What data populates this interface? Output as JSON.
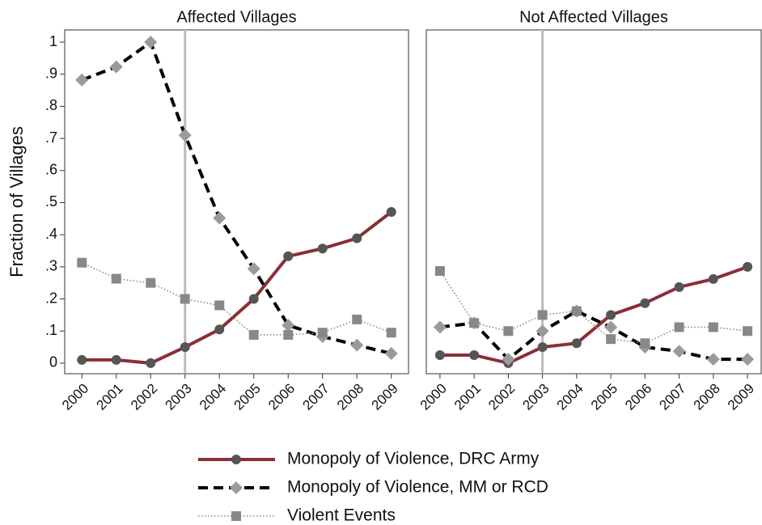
{
  "chart_data": [
    {
      "type": "line",
      "title": "Affected Villages",
      "ylabel": "Fraction of Villages",
      "x": [
        2000,
        2001,
        2002,
        2003,
        2004,
        2005,
        2006,
        2007,
        2008,
        2009
      ],
      "xlim": [
        1999.5,
        2009.5
      ],
      "xticks": [
        2000,
        2001,
        2002,
        2003,
        2004,
        2005,
        2006,
        2007,
        2008,
        2009
      ],
      "ylim": [
        -0.033,
        1.038
      ],
      "yticks": [
        0,
        {
          "value": 0.1,
          "label": ".1"
        },
        {
          "value": 0.2,
          "label": ".2"
        },
        {
          "value": 0.3,
          "label": ".3"
        },
        {
          "value": 0.4,
          "label": ".4"
        },
        {
          "value": 0.5,
          "label": ".5"
        },
        {
          "value": 0.6,
          "label": ".6"
        },
        {
          "value": 0.7,
          "label": ".7"
        },
        {
          "value": 0.8,
          "label": ".8"
        },
        {
          "value": 0.9,
          "label": ".9"
        },
        1
      ],
      "vline": 2003,
      "series": [
        {
          "name": "Monopoly of Violence, DRC Army",
          "color": "#8b2e35",
          "marker_color": "#555555",
          "marker": "circle",
          "style": "solid",
          "values": [
            0.01,
            0.01,
            0,
            0.05,
            0.105,
            0.2,
            0.333,
            0.357,
            0.389,
            0.471
          ]
        },
        {
          "name": "Monopoly of Violence, MM or RCD",
          "color": "#000000",
          "marker_color": "#9a9a9a",
          "marker": "diamond",
          "style": "dashed",
          "values": [
            0.882,
            0.923,
            1.0,
            0.71,
            0.452,
            0.294,
            0.118,
            0.083,
            0.056,
            0.03
          ]
        },
        {
          "name": "Violent Events",
          "color": "#888888",
          "marker_color": "#888888",
          "marker": "square",
          "style": "dotted",
          "values": [
            0.313,
            0.263,
            0.25,
            0.2,
            0.18,
            0.088,
            0.088,
            0.095,
            0.136,
            0.095
          ]
        }
      ]
    },
    {
      "type": "line",
      "title": "Not Affected Villages",
      "x": [
        2000,
        2001,
        2002,
        2003,
        2004,
        2005,
        2006,
        2007,
        2008,
        2009
      ],
      "xlim": [
        1999.6,
        2009.4
      ],
      "xticks": [
        2000,
        2001,
        2002,
        2003,
        2004,
        2005,
        2006,
        2007,
        2008,
        2009
      ],
      "ylim": [
        -0.033,
        1.038
      ],
      "vline": 2003,
      "series": [
        {
          "color": "#8b2e35",
          "marker_color": "#555555",
          "marker": "circle",
          "style": "solid",
          "values": [
            0.025,
            0.025,
            0,
            0.05,
            0.062,
            0.15,
            0.187,
            0.237,
            0.262,
            0.3
          ]
        },
        {
          "color": "#000000",
          "marker_color": "#9a9a9a",
          "marker": "diamond",
          "style": "dashed",
          "values": [
            0.112,
            0.125,
            0.012,
            0.1,
            0.162,
            0.112,
            0.05,
            0.037,
            0.012,
            0.012
          ]
        },
        {
          "color": "#888888",
          "marker_color": "#888888",
          "marker": "square",
          "style": "dotted",
          "values": [
            0.287,
            0.125,
            0.1,
            0.15,
            0.162,
            0.075,
            0.062,
            0.112,
            0.112,
            0.1
          ]
        }
      ]
    }
  ]
}
